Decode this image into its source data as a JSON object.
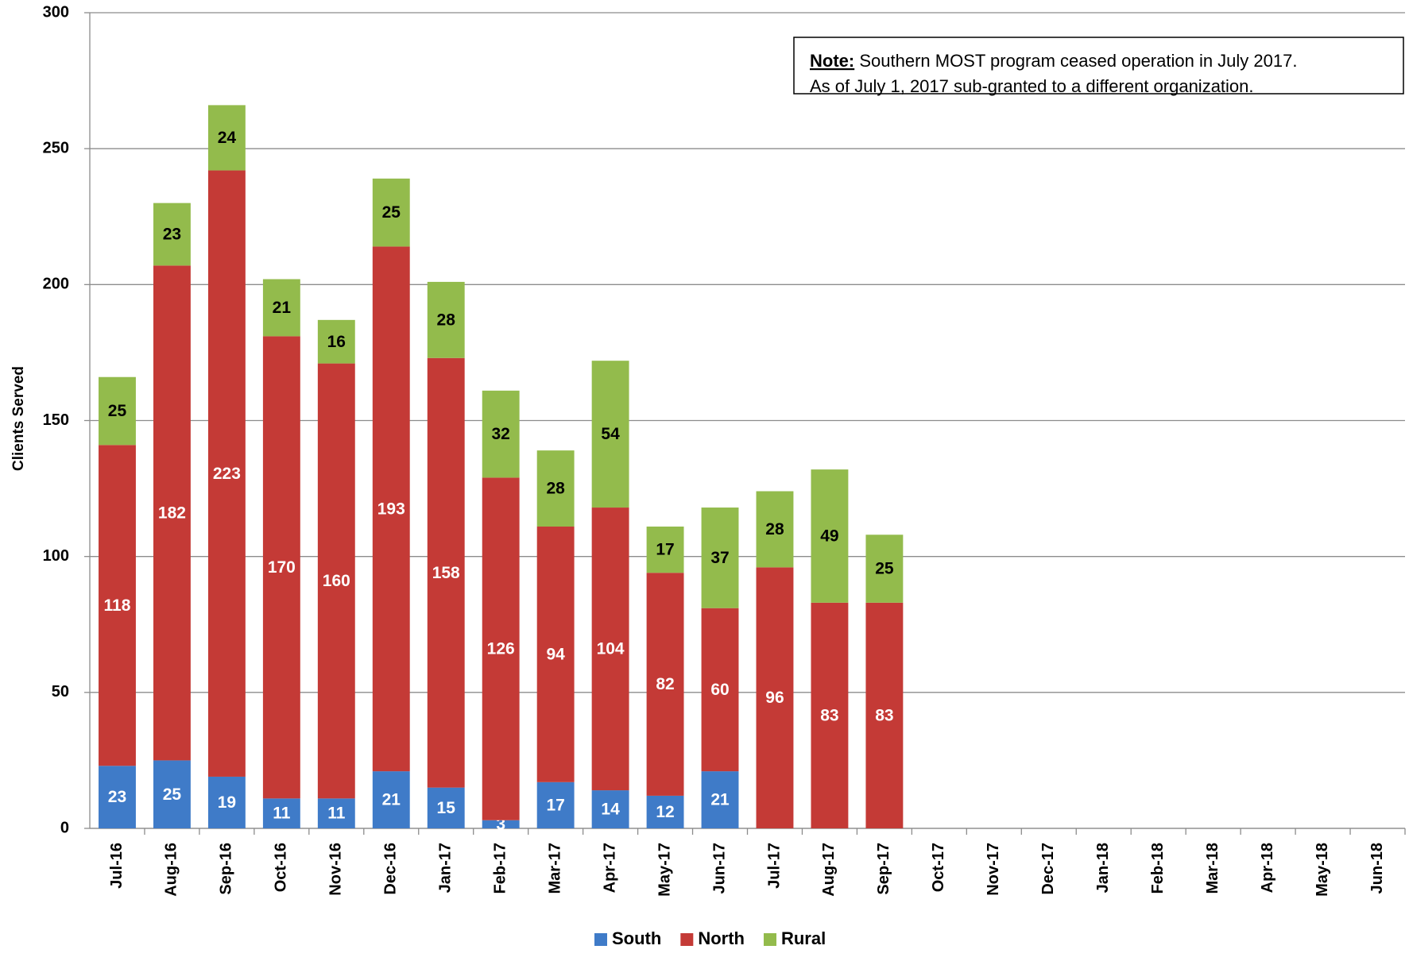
{
  "chart_data": {
    "type": "stacked_bar",
    "y_label": "Clients Served",
    "categories": [
      "Jul-16",
      "Aug-16",
      "Sep-16",
      "Oct-16",
      "Nov-16",
      "Dec-16",
      "Jan-17",
      "Feb-17",
      "Mar-17",
      "Apr-17",
      "May-17",
      "Jun-17",
      "Jul-17",
      "Aug-17",
      "Sep-17",
      "Oct-17",
      "Nov-17",
      "Dec-17",
      "Jan-18",
      "Feb-18",
      "Mar-18",
      "Apr-18",
      "May-18",
      "Jun-18"
    ],
    "series": [
      {
        "name": "South",
        "color": "#3f7bc8",
        "label_color": "#ffffff",
        "values": [
          23,
          25,
          19,
          11,
          11,
          21,
          15,
          3,
          17,
          14,
          12,
          21,
          null,
          null,
          null,
          null,
          null,
          null,
          null,
          null,
          null,
          null,
          null,
          null
        ]
      },
      {
        "name": "North",
        "color": "#c43a36",
        "label_color": "#ffffff",
        "values": [
          118,
          182,
          223,
          170,
          160,
          193,
          158,
          126,
          94,
          104,
          82,
          60,
          96,
          83,
          83,
          null,
          null,
          null,
          null,
          null,
          null,
          null,
          null,
          null
        ]
      },
      {
        "name": "Rural",
        "color": "#93bb4c",
        "label_color": "#000000",
        "values": [
          25,
          23,
          24,
          21,
          16,
          25,
          28,
          32,
          28,
          54,
          17,
          37,
          28,
          49,
          25,
          null,
          null,
          null,
          null,
          null,
          null,
          null,
          null,
          null
        ]
      }
    ],
    "ylim": [
      0,
      300
    ],
    "yticks": [
      0,
      50,
      100,
      150,
      200,
      250,
      300
    ],
    "grid": true,
    "legend": "bottom",
    "annotation": {
      "label": "Note:",
      "lines": [
        "Southern MOST program ceased operation in July 2017.",
        "As of July 1, 2017 sub-granted to a different organization."
      ]
    }
  }
}
